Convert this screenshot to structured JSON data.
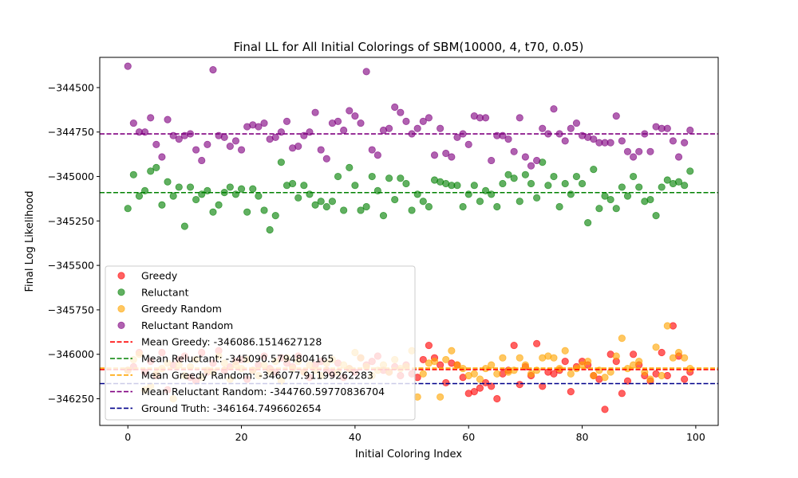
{
  "chart_data": {
    "type": "scatter",
    "title": "Final LL for All Initial Colorings of SBM(10000, 4, t70, 0.05)",
    "xlabel": "Initial Coloring Index",
    "ylabel": "Final Log Likelihood",
    "xlim": [
      -4.95,
      103.95
    ],
    "ylim": [
      -346400,
      -344330
    ],
    "x_ticks": [
      0,
      20,
      40,
      60,
      80,
      100
    ],
    "y_ticks": [
      -346250,
      -346000,
      -345750,
      -345500,
      -345250,
      -345000,
      -344750,
      -344500
    ],
    "x_tick_labels": [
      "0",
      "20",
      "40",
      "60",
      "80",
      "100"
    ],
    "y_tick_labels": [
      "−346250",
      "−346000",
      "−345750",
      "−345500",
      "−345250",
      "−345000",
      "−344750",
      "−344500"
    ],
    "grid": false,
    "legend_position": "lower-left",
    "series": [
      {
        "name": "Greedy",
        "color": "#ff0000",
        "values": [
          -346090,
          -346070,
          -345990,
          -346100,
          -346040,
          -346120,
          -345990,
          -346200,
          -346060,
          -346030,
          -346010,
          -346130,
          -346150,
          -345990,
          -346100,
          -346050,
          -345980,
          -346090,
          -346070,
          -346040,
          -346030,
          -346140,
          -346090,
          -346060,
          -346010,
          -346080,
          -346100,
          -346020,
          -346050,
          -346070,
          -346010,
          -346100,
          -346130,
          -346060,
          -346040,
          -346090,
          -346110,
          -346050,
          -346130,
          -346080,
          -346100,
          -346020,
          -346060,
          -346040,
          -346010,
          -346090,
          -346100,
          -346070,
          -346120,
          -346060,
          -346110,
          -346130,
          -346030,
          -345950,
          -346020,
          -346060,
          -346160,
          -346050,
          -346060,
          -346130,
          -346220,
          -346210,
          -346190,
          -346160,
          -346180,
          -346250,
          -346110,
          -346090,
          -345950,
          -346170,
          -346070,
          -346120,
          -345940,
          -346180,
          -346100,
          -346110,
          -346090,
          -346040,
          -346210,
          -346070,
          -346040,
          -346060,
          -346120,
          -346140,
          -346310,
          -346000,
          -346040,
          -346220,
          -346150,
          -346000,
          -346060,
          -346120,
          -346150,
          -346110,
          -345990,
          -346120,
          -345840,
          -346010,
          -346140,
          -346100
        ]
      },
      {
        "name": "Reluctant",
        "color": "#008000",
        "values": [
          -345180,
          -344990,
          -345110,
          -345080,
          -344970,
          -344950,
          -345160,
          -345030,
          -345110,
          -345060,
          -345280,
          -345060,
          -345130,
          -345100,
          -345080,
          -345200,
          -345160,
          -345090,
          -345060,
          -345100,
          -345070,
          -345200,
          -345070,
          -345110,
          -345190,
          -345300,
          -345220,
          -344920,
          -345050,
          -345040,
          -345120,
          -345050,
          -345100,
          -345160,
          -345140,
          -345170,
          -345140,
          -345000,
          -345190,
          -344950,
          -345050,
          -345190,
          -345170,
          -345000,
          -345080,
          -345220,
          -345010,
          -345130,
          -345010,
          -345040,
          -345190,
          -345100,
          -345140,
          -345170,
          -345020,
          -345030,
          -345040,
          -345050,
          -345050,
          -345170,
          -345100,
          -345050,
          -345140,
          -345080,
          -345100,
          -345170,
          -345040,
          -344990,
          -345010,
          -345140,
          -344990,
          -345040,
          -345120,
          -344920,
          -345050,
          -345000,
          -345170,
          -345040,
          -345100,
          -345000,
          -345040,
          -345260,
          -344960,
          -345180,
          -345110,
          -345130,
          -345180,
          -345060,
          -345110,
          -345000,
          -345060,
          -345140,
          -345130,
          -345220,
          -345060,
          -345020,
          -345040,
          -345030,
          -345050,
          -344970
        ]
      },
      {
        "name": "Greedy Random",
        "color": "#ffa500",
        "values": [
          -346090,
          -346030,
          -346000,
          -346200,
          -346180,
          -346110,
          -346080,
          -346050,
          -346250,
          -346060,
          -346120,
          -346070,
          -346030,
          -346130,
          -346090,
          -346100,
          -346010,
          -346050,
          -346140,
          -346060,
          -346080,
          -346030,
          -346090,
          -346120,
          -346060,
          -346100,
          -346040,
          -346150,
          -346020,
          -346080,
          -346040,
          -346100,
          -346060,
          -346090,
          -346120,
          -346050,
          -346030,
          -346100,
          -346060,
          -346080,
          -345990,
          -346020,
          -346070,
          -346120,
          -346090,
          -346060,
          -346100,
          -346030,
          -346080,
          -346070,
          -345980,
          -346240,
          -346110,
          -346050,
          -346040,
          -346240,
          -346030,
          -345980,
          -346060,
          -346080,
          -346120,
          -346110,
          -346140,
          -346080,
          -346060,
          -346110,
          -346020,
          -346100,
          -346090,
          -346020,
          -346060,
          -346110,
          -346090,
          -346020,
          -346010,
          -346020,
          -346080,
          -345980,
          -346110,
          -346080,
          -346060,
          -346040,
          -346120,
          -346090,
          -346130,
          -346100,
          -346010,
          -345910,
          -346080,
          -346060,
          -346040,
          -346100,
          -346140,
          -345960,
          -346120,
          -345840,
          -346020,
          -345990,
          -346020,
          -346080
        ]
      },
      {
        "name": "Reluctant Random",
        "color": "#800080",
        "values": [
          -344380,
          -344700,
          -344750,
          -344750,
          -344670,
          -344820,
          -344890,
          -344680,
          -344770,
          -344790,
          -344770,
          -344760,
          -344850,
          -344910,
          -344820,
          -344400,
          -344770,
          -344780,
          -344830,
          -344800,
          -344850,
          -344720,
          -344710,
          -344720,
          -344700,
          -344790,
          -344780,
          -344750,
          -344690,
          -344840,
          -344830,
          -344770,
          -344750,
          -344640,
          -344850,
          -344900,
          -344700,
          -344690,
          -344740,
          -344630,
          -344660,
          -344700,
          -344410,
          -344850,
          -344880,
          -344740,
          -344730,
          -344610,
          -344640,
          -344690,
          -344760,
          -344730,
          -344690,
          -344670,
          -344880,
          -344730,
          -344870,
          -344890,
          -344780,
          -344760,
          -344820,
          -344660,
          -344670,
          -344670,
          -344910,
          -344770,
          -344770,
          -344790,
          -344860,
          -344670,
          -344890,
          -344940,
          -344910,
          -344730,
          -344760,
          -344620,
          -344760,
          -344800,
          -344730,
          -344700,
          -344770,
          -344780,
          -344790,
          -344810,
          -344810,
          -344810,
          -344660,
          -344800,
          -344860,
          -344890,
          -344860,
          -344760,
          -344860,
          -344720,
          -344730,
          -344730,
          -344800,
          -344890,
          -344810,
          -344740
        ]
      }
    ],
    "reference_lines": [
      {
        "label": "Mean Greedy: -346086.1514627128",
        "value": -346086.1514627128,
        "color": "#ff0000"
      },
      {
        "label": "Mean Reluctant: -345090.5794804165",
        "value": -345090.5794804165,
        "color": "#008000"
      },
      {
        "label": "Mean Greedy Random: -346077.91199262283",
        "value": -346077.91199262283,
        "color": "#ffa500"
      },
      {
        "label": "Mean Reluctant Random: -344760.59770836704",
        "value": -344760.59770836704,
        "color": "#800080"
      },
      {
        "label": "Ground Truth: -346164.7496602654",
        "value": -346164.7496602654,
        "color": "#00008b"
      }
    ]
  }
}
